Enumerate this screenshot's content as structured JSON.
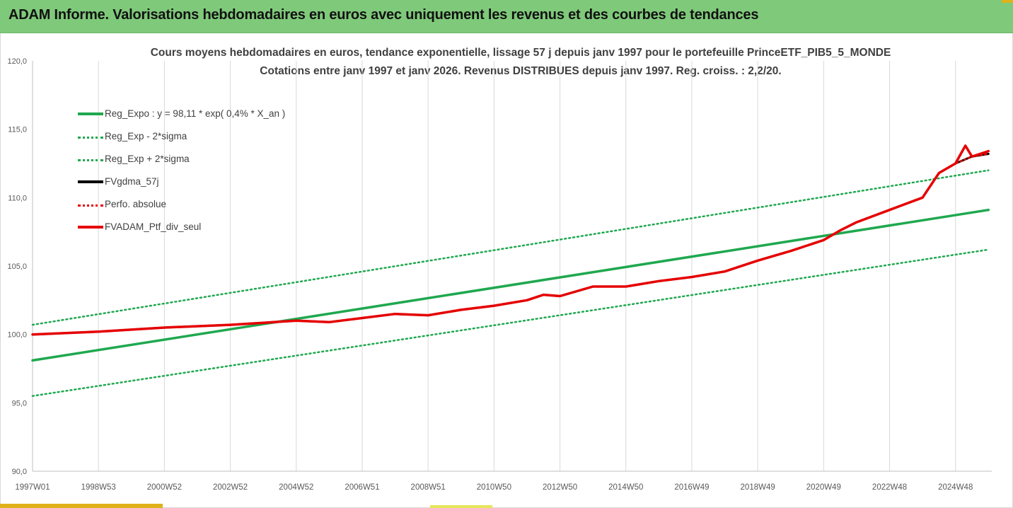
{
  "header": {
    "title": "ADAM Informe. Valorisations hebdomadaires en euros avec uniquement les revenus et des courbes de tendances"
  },
  "chart_data": {
    "type": "line",
    "title": "Cours moyens hebdomadaires  en euros, tendance exponentielle, lissage 57 j depuis janv 1997 pour le portefeuille PrinceETF_PIB5_5_MONDE",
    "subtitle": "Cotations  entre janv 1997 et janv 2026. Revenus DISTRIBUES depuis janv 1997. Reg. croiss. : 2,2/20.",
    "xlabel": "",
    "ylabel": "",
    "ylim": [
      90,
      120
    ],
    "xlim": [
      1997.0,
      2026.1
    ],
    "y_ticks": [
      "90,0",
      "95,0",
      "100,0",
      "105,0",
      "110,0",
      "115,0",
      "120,0"
    ],
    "y_tick_values": [
      90,
      95,
      100,
      105,
      110,
      115,
      120
    ],
    "x_ticks": [
      "1997W01",
      "1998W53",
      "2000W52",
      "2002W52",
      "2004W52",
      "2006W51",
      "2008W51",
      "2010W50",
      "2012W50",
      "2014W50",
      "2016W49",
      "2018W49",
      "2020W49",
      "2022W48",
      "2024W48"
    ],
    "x_tick_values": [
      1997.0,
      1999.0,
      2001.0,
      2003.0,
      2005.0,
      2007.0,
      2009.0,
      2011.0,
      2013.0,
      2015.0,
      2017.0,
      2019.0,
      2021.0,
      2023.0,
      2025.0
    ],
    "grid": "vertical",
    "legend_position": "top-left",
    "series": [
      {
        "name": "Reg_Expo : y = 98,11 * exp( 0,4% *  X_an )",
        "style": "solid",
        "color": "#1fa84f",
        "x": [
          1997.0,
          2026.0
        ],
        "values": [
          98.1,
          109.1
        ]
      },
      {
        "name": "Reg_Exp - 2*sigma",
        "style": "dotted",
        "color": "#1fa84f",
        "x": [
          1997.0,
          2026.0
        ],
        "values": [
          95.5,
          106.2
        ]
      },
      {
        "name": "Reg_Exp + 2*sigma",
        "style": "dotted",
        "color": "#1fa84f",
        "x": [
          1997.0,
          2026.0
        ],
        "values": [
          100.7,
          112.0
        ]
      },
      {
        "name": "FVgdma_57j",
        "style": "solid",
        "color": "#000000",
        "x": [
          1997.0,
          1999.0,
          2001.0,
          2003.0,
          2005.0,
          2006.0,
          2007.0,
          2008.0,
          2009.0,
          2010.0,
          2011.0,
          2012.0,
          2012.5,
          2013.0,
          2014.0,
          2015.0,
          2016.0,
          2017.0,
          2018.0,
          2019.0,
          2020.0,
          2020.5,
          2021.0,
          2021.5,
          2022.0,
          2023.0,
          2024.0,
          2024.5,
          2025.0,
          2025.5,
          2026.0
        ],
        "values": [
          100.0,
          100.2,
          100.5,
          100.7,
          101.0,
          100.9,
          101.2,
          101.5,
          101.4,
          101.8,
          102.1,
          102.5,
          102.9,
          102.8,
          103.5,
          103.5,
          103.9,
          104.2,
          104.6,
          105.4,
          106.1,
          106.5,
          106.9,
          107.6,
          108.2,
          109.1,
          110.0,
          111.8,
          112.5,
          113.0,
          113.2
        ]
      },
      {
        "name": "Perfo. absolue",
        "style": "dotted",
        "color": "#e60000",
        "x": [
          1997.0,
          1999.0,
          2001.0,
          2003.0,
          2005.0,
          2006.0,
          2007.0,
          2008.0,
          2009.0,
          2010.0,
          2011.0,
          2012.0,
          2012.5,
          2013.0,
          2014.0,
          2015.0,
          2016.0,
          2017.0,
          2018.0,
          2019.0,
          2020.0,
          2020.5,
          2021.0,
          2021.5,
          2022.0,
          2023.0,
          2024.0,
          2024.5,
          2025.0,
          2025.5,
          2026.0
        ],
        "values": [
          100.0,
          100.2,
          100.5,
          100.7,
          101.0,
          100.9,
          101.2,
          101.5,
          101.4,
          101.8,
          102.1,
          102.5,
          102.9,
          102.8,
          103.5,
          103.5,
          103.9,
          104.2,
          104.6,
          105.4,
          106.1,
          106.5,
          106.9,
          107.6,
          108.2,
          109.1,
          110.0,
          111.8,
          112.5,
          113.0,
          113.2
        ]
      },
      {
        "name": "FVADAM_Ptf_div_seul",
        "style": "solid",
        "color": "#e60000",
        "x": [
          1997.0,
          1999.0,
          2001.0,
          2003.0,
          2005.0,
          2006.0,
          2007.0,
          2008.0,
          2009.0,
          2010.0,
          2011.0,
          2012.0,
          2012.5,
          2013.0,
          2014.0,
          2015.0,
          2016.0,
          2017.0,
          2018.0,
          2019.0,
          2020.0,
          2020.5,
          2021.0,
          2021.5,
          2022.0,
          2023.0,
          2024.0,
          2024.5,
          2025.0,
          2025.3,
          2025.5,
          2026.0
        ],
        "values": [
          100.0,
          100.2,
          100.5,
          100.7,
          101.0,
          100.9,
          101.2,
          101.5,
          101.4,
          101.8,
          102.1,
          102.5,
          102.9,
          102.8,
          103.5,
          103.5,
          103.9,
          104.2,
          104.6,
          105.4,
          106.1,
          106.5,
          106.9,
          107.6,
          108.2,
          109.1,
          110.0,
          111.8,
          112.5,
          113.8,
          113.0,
          113.4
        ]
      }
    ]
  }
}
